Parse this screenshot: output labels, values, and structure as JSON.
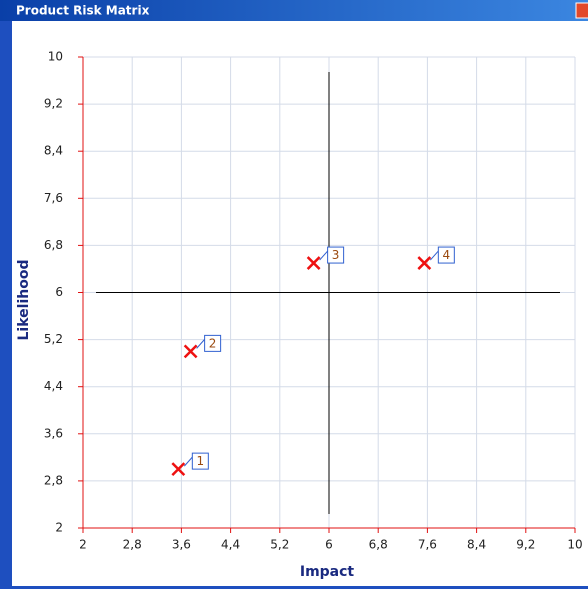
{
  "window_title": "Product Risk Matrix",
  "chart_data": {
    "type": "scatter",
    "xlabel": "Impact",
    "ylabel": "Likelihood",
    "x": [
      3.55,
      3.75,
      5.75,
      7.55
    ],
    "y": [
      3,
      5,
      6.5,
      6.5
    ],
    "labels": [
      "1",
      "2",
      "3",
      "4"
    ],
    "color": "#ee1111",
    "crosshair": {
      "x": 6,
      "y": 6
    },
    "xlim": [
      2,
      10
    ],
    "ylim": [
      2,
      10
    ],
    "xticks": [
      2,
      {
        "value": 2.8,
        "label": "2,8"
      },
      {
        "value": 3.6,
        "label": "3,6"
      },
      {
        "value": 4.4,
        "label": "4,4"
      },
      {
        "value": 5.2,
        "label": "5,2"
      },
      6,
      {
        "value": 6.8,
        "label": "6,8"
      },
      {
        "value": 7.6,
        "label": "7,6"
      },
      {
        "value": 8.4,
        "label": "8,4"
      },
      {
        "value": 9.2,
        "label": "9,2"
      },
      10
    ],
    "yticks": [
      2,
      {
        "value": 2.8,
        "label": "2,8"
      },
      {
        "value": 3.6,
        "label": "3,6"
      },
      {
        "value": 4.4,
        "label": "4,4"
      },
      {
        "value": 5.2,
        "label": "5,2"
      },
      6,
      {
        "value": 6.8,
        "label": "6,8"
      },
      {
        "value": 7.6,
        "label": "7,6"
      },
      {
        "value": 8.4,
        "label": "8,4"
      },
      {
        "value": 9.2,
        "label": "9,2"
      },
      10
    ],
    "grid": true
  }
}
